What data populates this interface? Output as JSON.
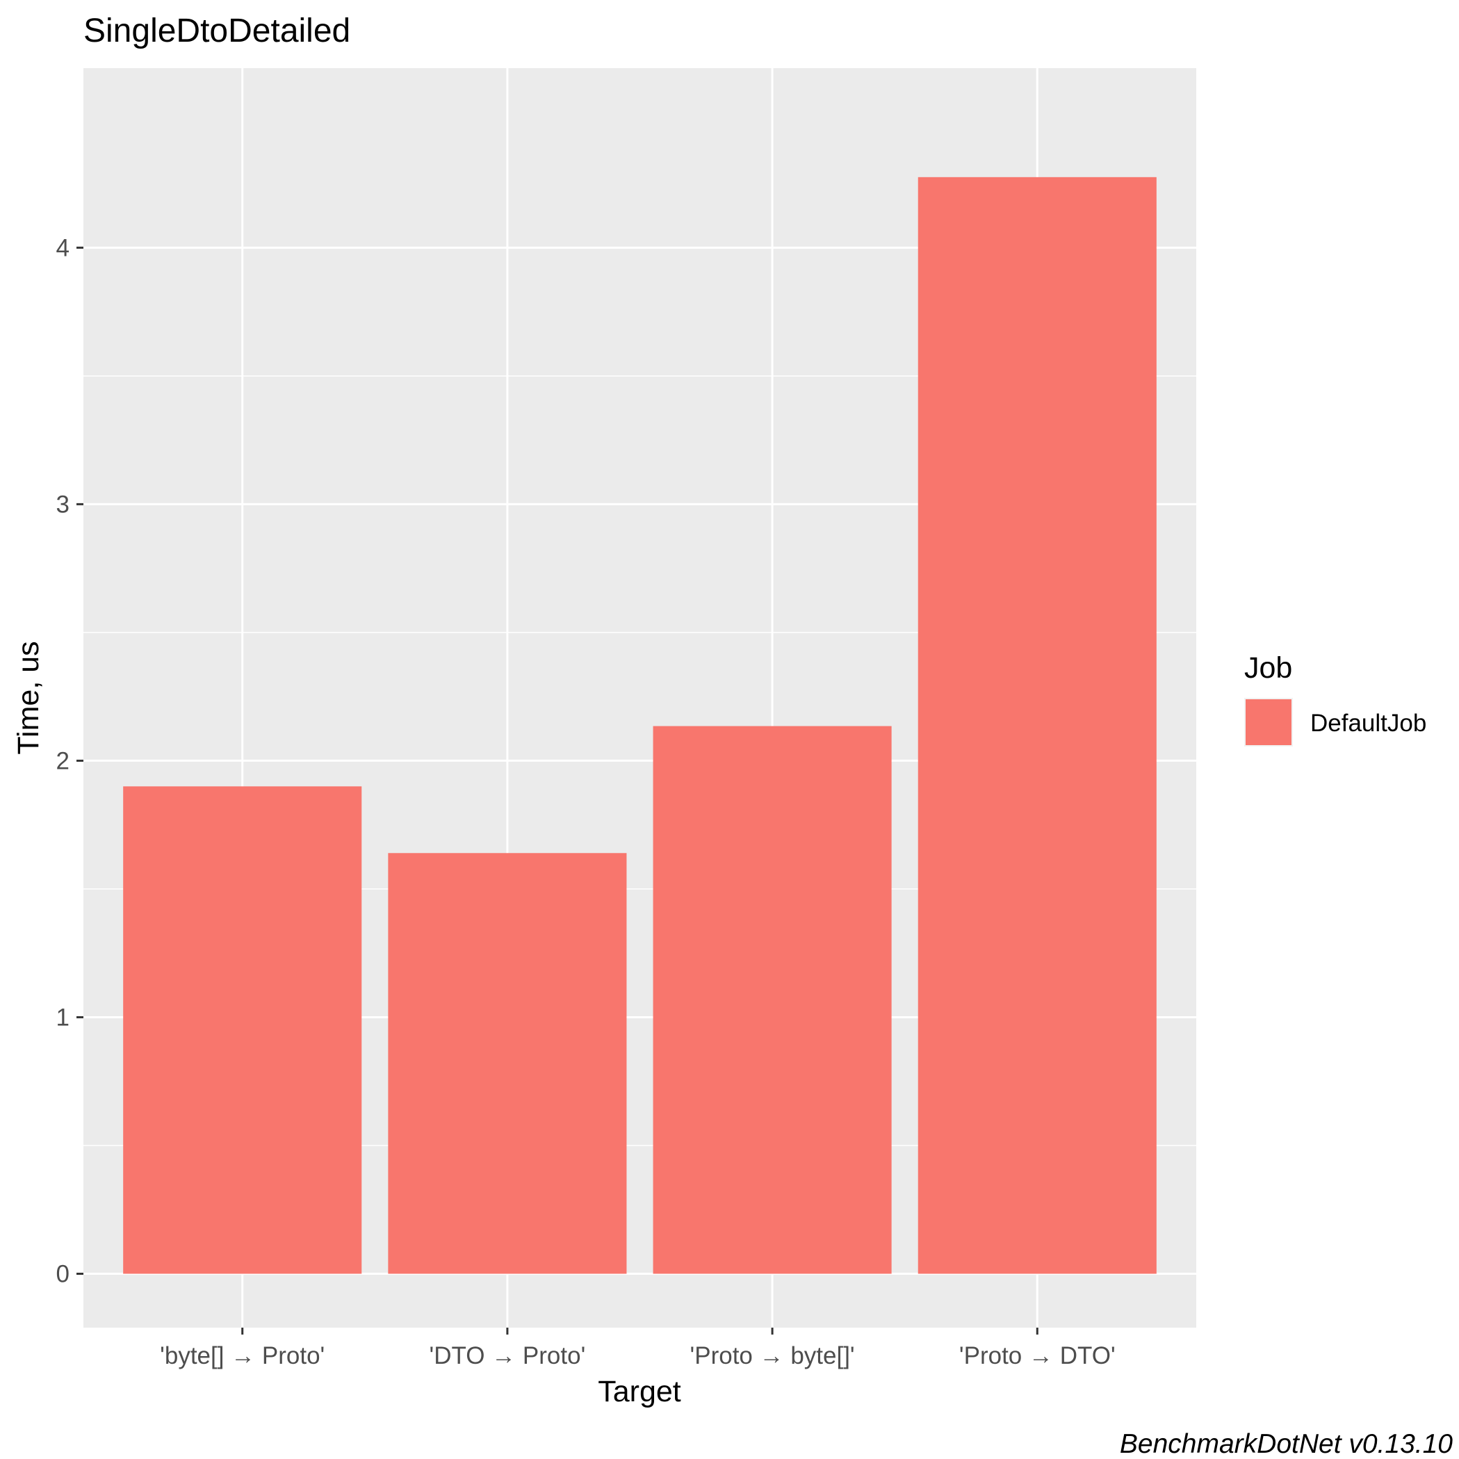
{
  "chart_data": {
    "type": "bar",
    "title": "SingleDtoDetailed",
    "xlabel": "Target",
    "ylabel": "Time, us",
    "categories": [
      "'byte[] → Proto'",
      "'DTO → Proto'",
      "'Proto → byte[]'",
      "'Proto → DTO'"
    ],
    "series": [
      {
        "name": "DefaultJob",
        "values": [
          1.9,
          1.64,
          2.135,
          4.275
        ],
        "color": "#f8766d"
      }
    ],
    "ylim": [
      -0.21,
      4.7
    ],
    "yticks": [
      0,
      1,
      2,
      3,
      4
    ],
    "grid": true,
    "panel_background": "#ebebeb",
    "legend": {
      "title": "Job",
      "position": "right",
      "entries": [
        "DefaultJob"
      ]
    },
    "caption": "BenchmarkDotNet v0.13.10"
  }
}
